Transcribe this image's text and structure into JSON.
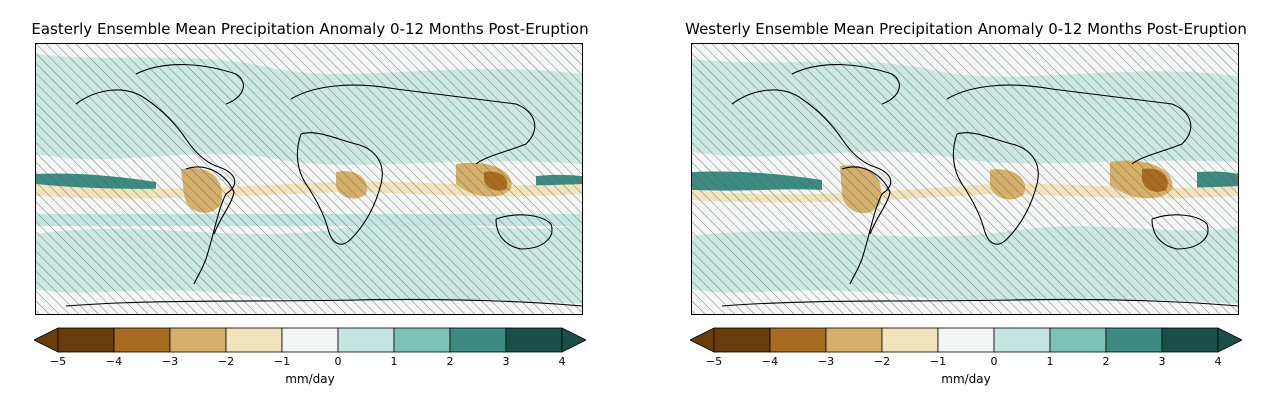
{
  "panels": [
    {
      "id": "left",
      "title": "Easterly Ensemble Mean Precipitation Anomaly 0-12 Months Post-Eruption",
      "colorbar": {
        "unit": "mm/day",
        "ticks": [
          "−5",
          "−4",
          "−3",
          "−2",
          "−1",
          "0",
          "1",
          "2",
          "3",
          "4"
        ],
        "levels": [
          -5,
          -4,
          -3,
          -2,
          -1,
          0,
          1,
          2,
          3,
          4
        ],
        "colors": [
          "#6b3c0b",
          "#a86b22",
          "#d4b068",
          "#f1e3bc",
          "#f4f6f5",
          "#c3e5df",
          "#7ec2b6",
          "#3b8b82",
          "#1a4f48"
        ],
        "extend": "both"
      }
    },
    {
      "id": "right",
      "title": "Westerly Ensemble Mean Precipitation Anomaly 0-12 Months Post-Eruption",
      "colorbar": {
        "unit": "mm/day",
        "ticks": [
          "−5",
          "−4",
          "−3",
          "−2",
          "−1",
          "0",
          "1",
          "2",
          "3",
          "4"
        ],
        "levels": [
          -5,
          -4,
          -3,
          -2,
          -1,
          0,
          1,
          2,
          3,
          4
        ],
        "colors": [
          "#6b3c0b",
          "#a86b22",
          "#d4b068",
          "#f1e3bc",
          "#f4f6f5",
          "#c3e5df",
          "#7ec2b6",
          "#3b8b82",
          "#1a4f48"
        ],
        "extend": "both"
      }
    }
  ],
  "map": {
    "projection": "PlateCarree",
    "lon_range": [
      -180,
      180
    ],
    "lat_range": [
      -90,
      90
    ],
    "hatching": "non-significant regions"
  }
}
